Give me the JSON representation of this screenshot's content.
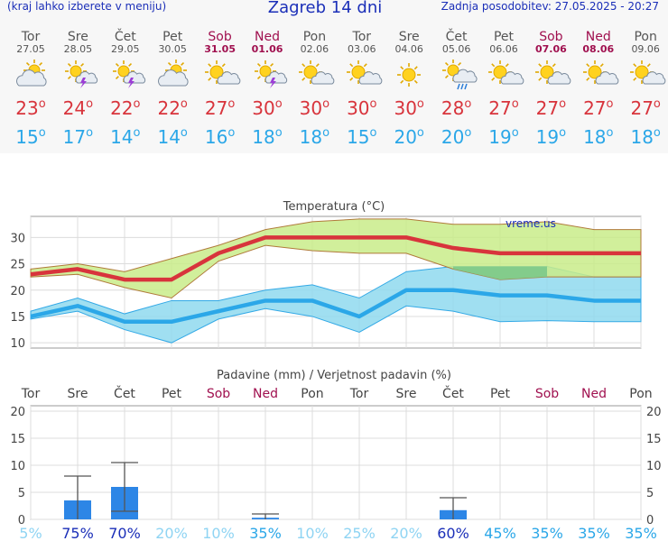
{
  "header": {
    "menu_hint": "(kraj lahko izberete v meniju)",
    "title": "Zagreb 14 dni",
    "updated": "Zadnja posodobitev: 27.05.2025 - 20:27"
  },
  "days": [
    {
      "name": "Tor",
      "date": "27.05",
      "weekend": false,
      "icon": "partly-cloudy-icon",
      "max": "23",
      "min": "15"
    },
    {
      "name": "Sre",
      "date": "28.05",
      "weekend": false,
      "icon": "thunderstorm-sun-icon",
      "max": "24",
      "min": "17"
    },
    {
      "name": "Čet",
      "date": "29.05",
      "weekend": false,
      "icon": "thunderstorm-sun-icon",
      "max": "22",
      "min": "14"
    },
    {
      "name": "Pet",
      "date": "30.05",
      "weekend": false,
      "icon": "partly-cloudy-icon",
      "max": "22",
      "min": "14"
    },
    {
      "name": "Sob",
      "date": "31.05",
      "weekend": true,
      "icon": "sun-cloud-icon",
      "max": "27",
      "min": "16"
    },
    {
      "name": "Ned",
      "date": "01.06",
      "weekend": true,
      "icon": "thunderstorm-sun-icon",
      "max": "30",
      "min": "18"
    },
    {
      "name": "Pon",
      "date": "02.06",
      "weekend": false,
      "icon": "sun-cloud-icon",
      "max": "30",
      "min": "18"
    },
    {
      "name": "Tor",
      "date": "03.06",
      "weekend": false,
      "icon": "sun-cloud-icon",
      "max": "30",
      "min": "15"
    },
    {
      "name": "Sre",
      "date": "04.06",
      "weekend": false,
      "icon": "sun-icon",
      "max": "30",
      "min": "20"
    },
    {
      "name": "Čet",
      "date": "05.06",
      "weekend": false,
      "icon": "sun-cloud-rain-icon",
      "max": "28",
      "min": "20"
    },
    {
      "name": "Pet",
      "date": "06.06",
      "weekend": false,
      "icon": "sun-cloud-icon",
      "max": "27",
      "min": "19"
    },
    {
      "name": "Sob",
      "date": "07.06",
      "weekend": true,
      "icon": "sun-cloud-icon",
      "max": "27",
      "min": "19"
    },
    {
      "name": "Ned",
      "date": "08.06",
      "weekend": true,
      "icon": "sun-cloud-icon",
      "max": "27",
      "min": "18"
    },
    {
      "name": "Pon",
      "date": "09.06",
      "weekend": false,
      "icon": "sun-cloud-icon",
      "max": "27",
      "min": "18"
    }
  ],
  "colors": {
    "max": "#d8343c",
    "min": "#2ba7e8",
    "weekend": "#a0104f",
    "bar": "#2d86e6"
  },
  "chart_data": [
    {
      "type": "line",
      "title": "Temperatura (°C)",
      "watermark": "vreme.us",
      "ylim": [
        9,
        34
      ],
      "yticks": [
        10,
        15,
        20,
        25,
        30
      ],
      "grid": true,
      "categories": [
        "27.05",
        "28.05",
        "29.05",
        "30.05",
        "31.05",
        "01.06",
        "02.06",
        "03.06",
        "04.06",
        "05.06",
        "06.06",
        "07.06",
        "08.06",
        "09.06"
      ],
      "series": [
        {
          "values": [
            23,
            24,
            22,
            22,
            27,
            30,
            30,
            30,
            30,
            28,
            27,
            27,
            27,
            27
          ]
        },
        {
          "values": [
            15,
            17,
            14,
            14,
            16,
            18,
            18,
            15,
            20,
            20,
            19,
            19,
            18,
            18
          ]
        }
      ],
      "max_range": {
        "low": [
          22.5,
          23,
          20.5,
          18.5,
          25.5,
          28.5,
          27.5,
          27,
          27,
          24,
          22,
          22.5,
          22.5,
          22.5
        ],
        "high": [
          24,
          25,
          23.5,
          26,
          28.5,
          31.5,
          33,
          33.5,
          33.5,
          32.5,
          32.5,
          33,
          31.5,
          31.5
        ]
      },
      "min_range": {
        "low": [
          14.5,
          16,
          12.5,
          10,
          14.5,
          16.5,
          15,
          12,
          17,
          16,
          14,
          14.2,
          14,
          14
        ],
        "high": [
          16,
          18.5,
          15.5,
          18,
          18,
          20,
          21,
          18.5,
          23.5,
          24.5,
          24.5,
          24.5,
          22.5,
          22.5
        ]
      }
    },
    {
      "type": "bar",
      "title": "Padavine (mm) / Verjetnost padavin (%)",
      "ylim": [
        0,
        21
      ],
      "yticks": [
        0,
        5,
        10,
        15,
        20
      ],
      "grid": true,
      "categories": [
        "Tor",
        "Sre",
        "Čet",
        "Pet",
        "Sob",
        "Ned",
        "Pon",
        "Tor",
        "Sre",
        "Čet",
        "Pet",
        "Sob",
        "Ned",
        "Pon"
      ],
      "values": [
        0,
        3.5,
        6,
        0,
        0,
        0.3,
        0,
        0,
        0,
        1.7,
        0,
        0,
        0,
        0
      ],
      "error_high": [
        null,
        8,
        10.5,
        null,
        null,
        1,
        null,
        null,
        null,
        4,
        null,
        null,
        null,
        null
      ],
      "error_low": [
        null,
        0,
        1.5,
        null,
        null,
        0,
        null,
        null,
        null,
        0,
        null,
        null,
        null,
        null
      ],
      "probability": [
        "5%",
        "75%",
        "70%",
        "20%",
        "10%",
        "35%",
        "10%",
        "25%",
        "20%",
        "60%",
        "45%",
        "35%",
        "35%",
        "35%"
      ]
    }
  ]
}
